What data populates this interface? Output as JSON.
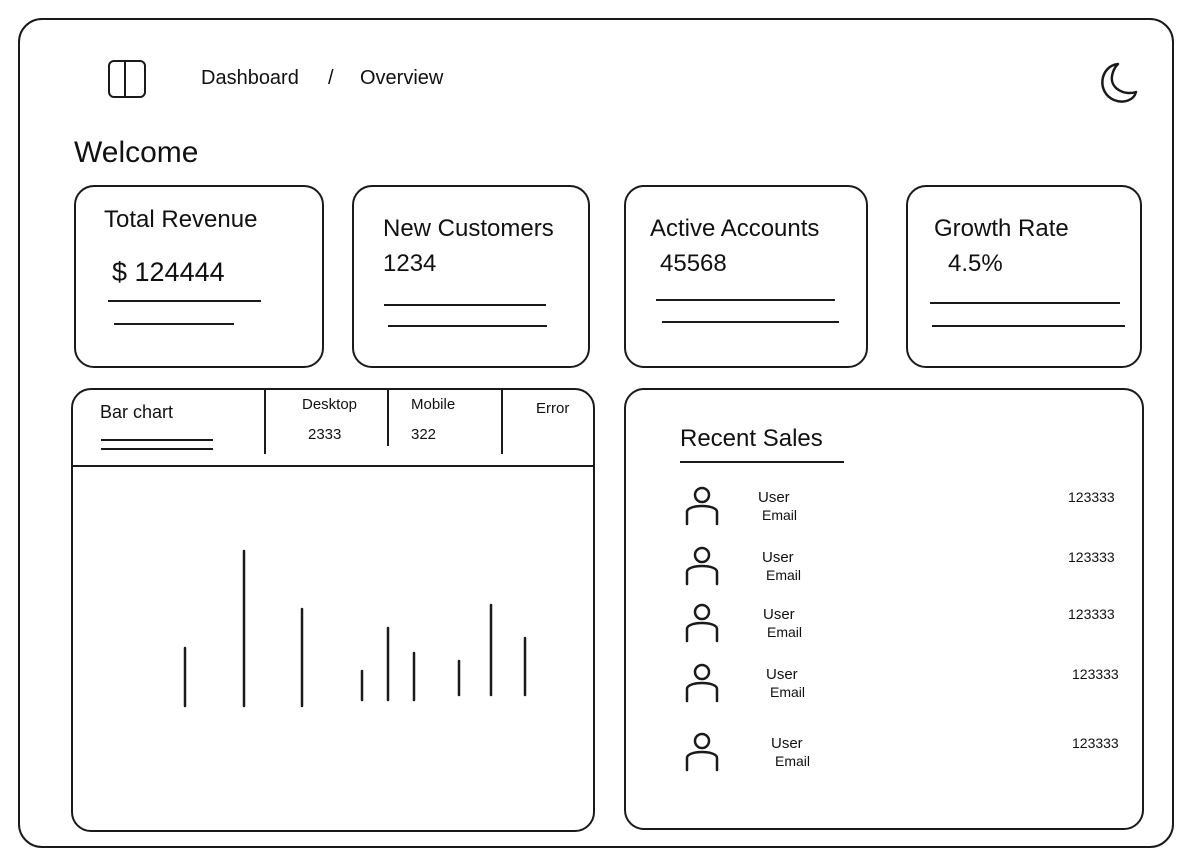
{
  "header": {
    "breadcrumb": {
      "first": "Dashboard",
      "separator": "/",
      "second": "Overview"
    }
  },
  "page": {
    "title": "Welcome"
  },
  "cards": [
    {
      "title": "Total Revenue",
      "value": "$ 124444"
    },
    {
      "title": "New Customers",
      "value": "1234"
    },
    {
      "title": "Active Accounts",
      "value": "45568"
    },
    {
      "title": "Growth Rate",
      "value": "4.5%"
    }
  ],
  "chart_panel": {
    "tab_bar_chart": "Bar chart",
    "desktop": {
      "label": "Desktop",
      "value": "2333"
    },
    "mobile": {
      "label": "Mobile",
      "value": "322"
    },
    "error": {
      "label": "Error"
    }
  },
  "chart_data": {
    "type": "bar",
    "title": "Bar chart",
    "values": [
      58,
      155,
      97,
      29,
      72,
      47,
      34,
      90,
      57
    ],
    "ylim": [
      0,
      160
    ]
  },
  "recent_sales": {
    "title": "Recent Sales",
    "rows": [
      {
        "name": "User",
        "email": "Email",
        "amount": "123333"
      },
      {
        "name": "User",
        "email": "Email",
        "amount": "123333"
      },
      {
        "name": "User",
        "email": "Email",
        "amount": "123333"
      },
      {
        "name": "User",
        "email": "Email",
        "amount": "123333"
      },
      {
        "name": "User",
        "email": "Email",
        "amount": "123333"
      }
    ]
  },
  "colors": {
    "stroke": "#1a1a1a",
    "background": "#ffffff"
  },
  "icons": {
    "sidebar": "sidebar-toggle-icon",
    "theme": "moon-icon",
    "user": "user-icon"
  }
}
